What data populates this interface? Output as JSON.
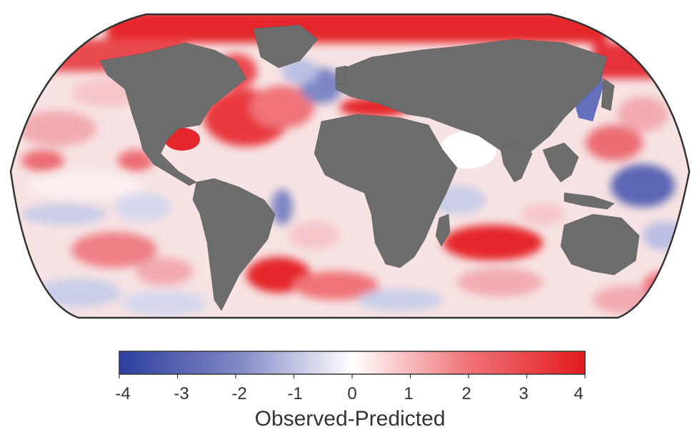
{
  "map": {
    "projection": "Robinson (world ocean anomaly map)",
    "land_color": "#6d6d6d",
    "outline_color": "#333333"
  },
  "colorbar": {
    "min": -4,
    "max": 4,
    "ticks": [
      "-4",
      "-3",
      "-2",
      "-1",
      "0",
      "1",
      "2",
      "3",
      "4"
    ],
    "label": "Observed-Predicted",
    "colors": {
      "negative": "#2d3f9e",
      "neutral": "#ffffff",
      "positive": "#e41a1c"
    }
  }
}
